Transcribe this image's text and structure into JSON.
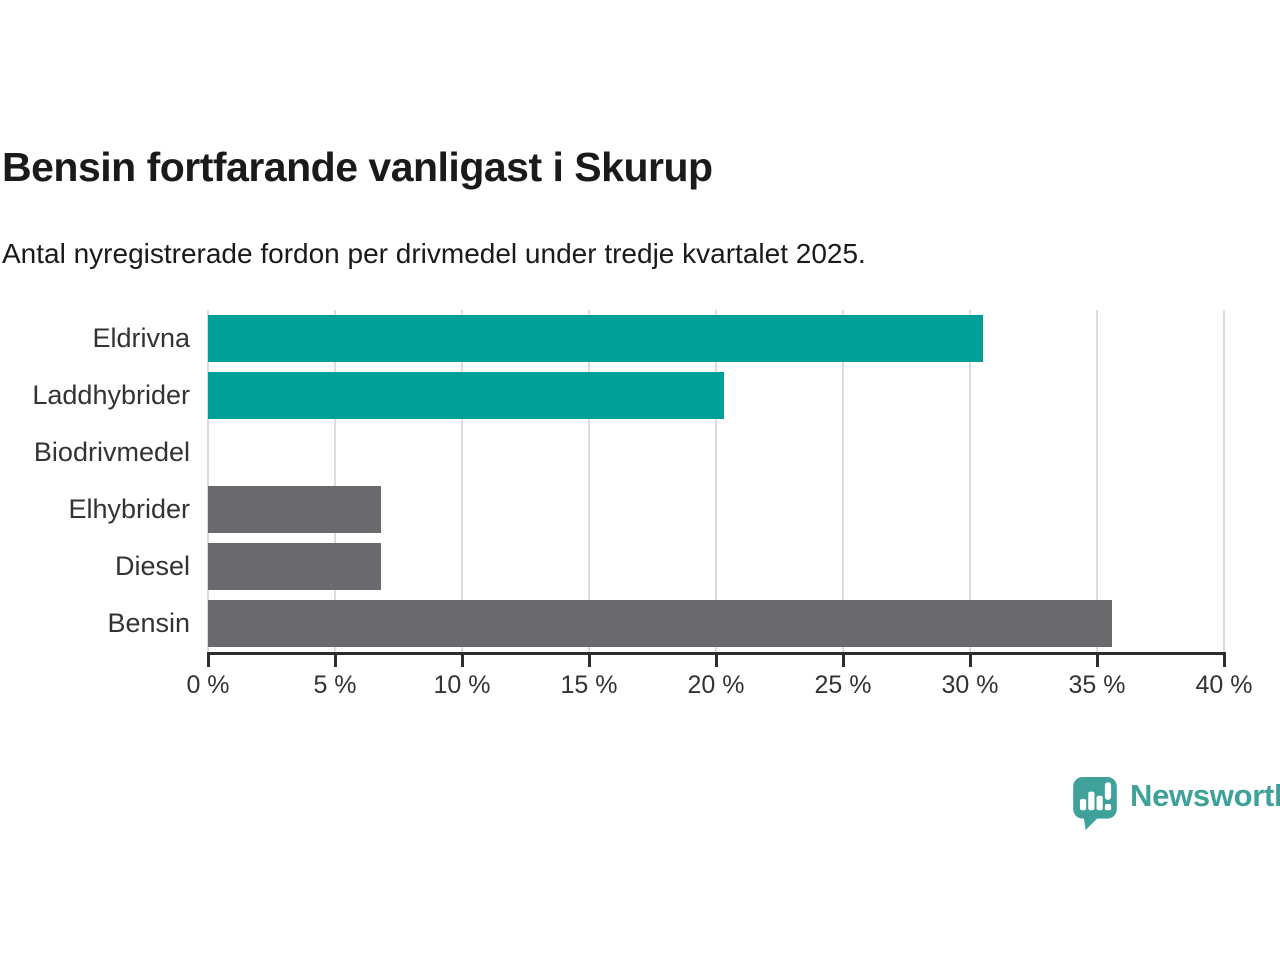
{
  "header": {
    "title": "Bensin fortfarande vanligast i Skurup",
    "subtitle": "Antal nyregistrerade fordon per drivmedel under tredje kvartalet 2025."
  },
  "chart_data": {
    "type": "bar",
    "orientation": "horizontal",
    "title": "Bensin fortfarande vanligast i Skurup",
    "subtitle": "Antal nyregistrerade fordon per drivmedel under tredje kvartalet 2025.",
    "categories": [
      "Eldrivna",
      "Laddhybrider",
      "Biodrivmedel",
      "Elhybrider",
      "Diesel",
      "Bensin"
    ],
    "values": [
      30.5,
      20.3,
      0,
      6.8,
      6.8,
      35.6
    ],
    "unit": "%",
    "bar_colors": [
      "#00A099",
      "#00A099",
      "#69696E",
      "#69696E",
      "#69696E",
      "#69696E"
    ],
    "xlabel": "",
    "ylabel": "",
    "xlim": [
      0,
      40
    ],
    "x_ticks": [
      0,
      5,
      10,
      15,
      20,
      25,
      30,
      35,
      40
    ],
    "x_tick_labels": [
      "0 %",
      "5 %",
      "10 %",
      "15 %",
      "20 %",
      "25 %",
      "30 %",
      "35 %",
      "40 %"
    ],
    "grid": true,
    "legend": false
  },
  "footer": {
    "brand": "Newsworthy"
  },
  "icons": {
    "logo": "newsworthy-bar-chart-speech-bubble-icon"
  },
  "colors": {
    "background": "#FFFFFF",
    "accent_teal": "#00A099",
    "neutral_gray": "#69696E",
    "logo_teal": "#3EA29A",
    "gridline": "#DCDCDC",
    "axis": "#2D2D2D",
    "title_text": "#1A1A1A",
    "label_text": "#333333"
  }
}
